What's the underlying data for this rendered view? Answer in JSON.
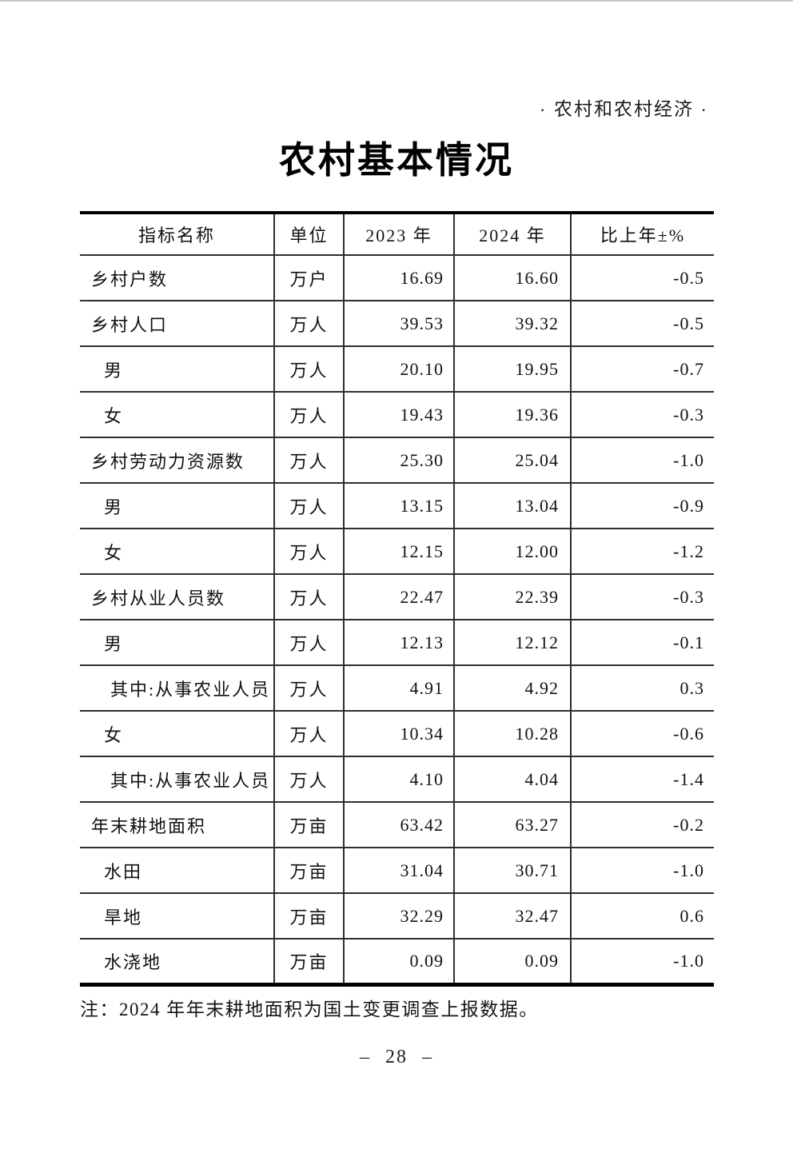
{
  "page": {
    "section_label": "· 农村和农村经济 ·",
    "title": "农村基本情况",
    "note": "注：2024 年年末耕地面积为国土变更调查上报数据。",
    "page_number": "– 28 –"
  },
  "colors": {
    "background": "#ffffff",
    "text": "#121212",
    "table_rule": "#2e2e2e",
    "table_frame": "#000000",
    "top_edge_line": "#c6c6c6"
  },
  "table": {
    "columns": [
      "指标名称",
      "单位",
      "2023 年",
      "2024 年",
      "比上年±%"
    ],
    "rows": [
      {
        "indicator": "乡村户数",
        "indent": 0,
        "unit": "万户",
        "y2023": "16.69",
        "y2024": "16.60",
        "change": "-0.5"
      },
      {
        "indicator": "乡村人口",
        "indent": 0,
        "unit": "万人",
        "y2023": "39.53",
        "y2024": "39.32",
        "change": "-0.5"
      },
      {
        "indicator": "男",
        "indent": 1,
        "unit": "万人",
        "y2023": "20.10",
        "y2024": "19.95",
        "change": "-0.7"
      },
      {
        "indicator": "女",
        "indent": 1,
        "unit": "万人",
        "y2023": "19.43",
        "y2024": "19.36",
        "change": "-0.3"
      },
      {
        "indicator": "乡村劳动力资源数",
        "indent": 0,
        "unit": "万人",
        "y2023": "25.30",
        "y2024": "25.04",
        "change": "-1.0"
      },
      {
        "indicator": "男",
        "indent": 1,
        "unit": "万人",
        "y2023": "13.15",
        "y2024": "13.04",
        "change": "-0.9"
      },
      {
        "indicator": "女",
        "indent": 1,
        "unit": "万人",
        "y2023": "12.15",
        "y2024": "12.00",
        "change": "-1.2"
      },
      {
        "indicator": "乡村从业人员数",
        "indent": 0,
        "unit": "万人",
        "y2023": "22.47",
        "y2024": "22.39",
        "change": "-0.3"
      },
      {
        "indicator": "男",
        "indent": 1,
        "unit": "万人",
        "y2023": "12.13",
        "y2024": "12.12",
        "change": "-0.1"
      },
      {
        "indicator": "其中:从事农业人员",
        "indent": 2,
        "unit": "万人",
        "y2023": "4.91",
        "y2024": "4.92",
        "change": "0.3"
      },
      {
        "indicator": "女",
        "indent": 1,
        "unit": "万人",
        "y2023": "10.34",
        "y2024": "10.28",
        "change": "-0.6"
      },
      {
        "indicator": "其中:从事农业人员",
        "indent": 2,
        "unit": "万人",
        "y2023": "4.10",
        "y2024": "4.04",
        "change": "-1.4"
      },
      {
        "indicator": "年末耕地面积",
        "indent": 0,
        "unit": "万亩",
        "y2023": "63.42",
        "y2024": "63.27",
        "change": "-0.2"
      },
      {
        "indicator": "水田",
        "indent": 1,
        "unit": "万亩",
        "y2023": "31.04",
        "y2024": "30.71",
        "change": "-1.0"
      },
      {
        "indicator": "旱地",
        "indent": 1,
        "unit": "万亩",
        "y2023": "32.29",
        "y2024": "32.47",
        "change": "0.6"
      },
      {
        "indicator": "水浇地",
        "indent": 1,
        "unit": "万亩",
        "y2023": "0.09",
        "y2024": "0.09",
        "change": "-1.0"
      }
    ]
  }
}
